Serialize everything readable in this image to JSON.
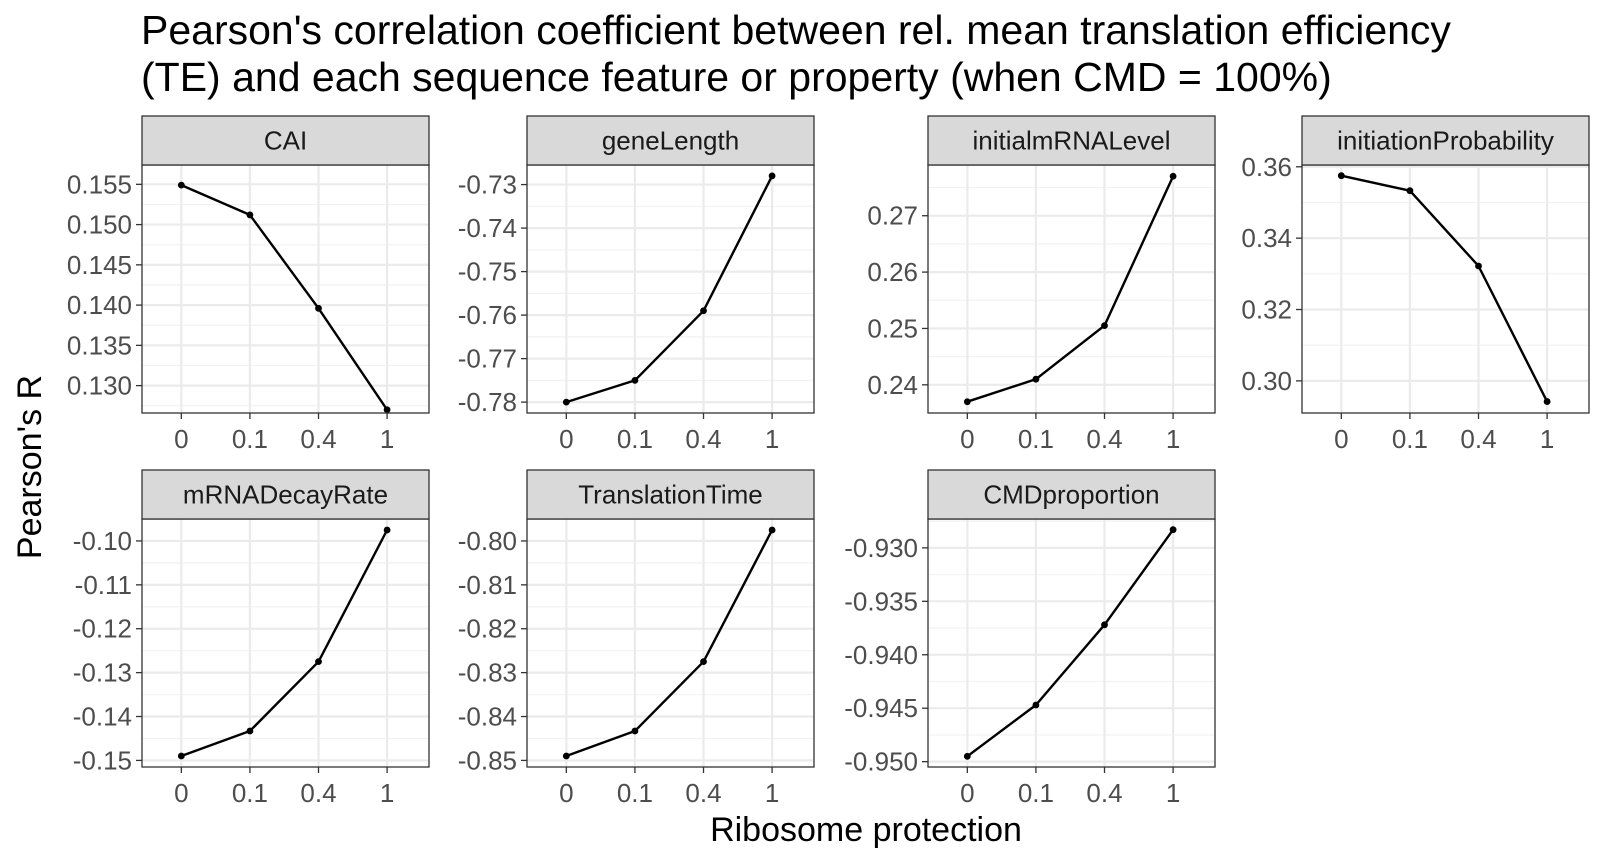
{
  "chart_data": {
    "type": "line",
    "title_lines": [
      "Pearson's correlation coefficient between rel. mean translation efficiency",
      "(TE) and each sequence feature or property (when CMD = 100%)"
    ],
    "xlabel": "Ribosome protection",
    "ylabel": "Pearson's R",
    "x": [
      "0",
      "0.1",
      "0.4",
      "1"
    ],
    "grid": true,
    "facets": [
      {
        "name": "CAI",
        "values": [
          0.1549,
          0.1512,
          0.1396,
          0.127
        ],
        "ylim": [
          0.1266,
          0.1574
        ],
        "y_ticks": [
          0.155,
          0.15,
          0.145,
          0.14,
          0.135,
          0.13
        ],
        "y_tick_labels": [
          "0.155",
          "0.150",
          "0.145",
          "0.140",
          "0.135",
          "0.130"
        ]
      },
      {
        "name": "geneLength",
        "values": [
          -0.78,
          -0.775,
          -0.759,
          -0.728
        ],
        "ylim": [
          -0.7825,
          -0.7255
        ],
        "y_ticks": [
          -0.73,
          -0.74,
          -0.75,
          -0.76,
          -0.77,
          -0.78
        ],
        "y_tick_labels": [
          "-0.73",
          "-0.74",
          "-0.75",
          "-0.76",
          "-0.77",
          "-0.78"
        ]
      },
      {
        "name": "initialmRNALevel",
        "values": [
          0.237,
          0.241,
          0.2505,
          0.277
        ],
        "ylim": [
          0.235,
          0.279
        ],
        "y_ticks": [
          0.27,
          0.26,
          0.25,
          0.24
        ],
        "y_tick_labels": [
          "0.27",
          "0.26",
          "0.25",
          "0.24"
        ]
      },
      {
        "name": "initiationProbability",
        "values": [
          0.3575,
          0.3533,
          0.3322,
          0.2942
        ],
        "ylim": [
          0.291,
          0.3605
        ],
        "y_ticks": [
          0.36,
          0.34,
          0.32,
          0.3
        ],
        "y_tick_labels": [
          "0.36",
          "0.34",
          "0.32",
          "0.30"
        ]
      },
      {
        "name": "mRNADecayRate",
        "values": [
          -0.149,
          -0.1433,
          -0.1275,
          -0.0975
        ],
        "ylim": [
          -0.1515,
          -0.095
        ],
        "y_ticks": [
          -0.1,
          -0.11,
          -0.12,
          -0.13,
          -0.14,
          -0.15
        ],
        "y_tick_labels": [
          "-0.10",
          "-0.11",
          "-0.12",
          "-0.13",
          "-0.14",
          "-0.15"
        ]
      },
      {
        "name": "TranslationTime",
        "values": [
          -0.849,
          -0.8433,
          -0.8275,
          -0.7975
        ],
        "ylim": [
          -0.8515,
          -0.795
        ],
        "y_ticks": [
          -0.8,
          -0.81,
          -0.82,
          -0.83,
          -0.84,
          -0.85
        ],
        "y_tick_labels": [
          "-0.80",
          "-0.81",
          "-0.82",
          "-0.83",
          "-0.84",
          "-0.85"
        ]
      },
      {
        "name": "CMDproportion",
        "values": [
          -0.9495,
          -0.9447,
          -0.9372,
          -0.9283
        ],
        "ylim": [
          -0.9505,
          -0.9273
        ],
        "y_ticks": [
          -0.93,
          -0.935,
          -0.94,
          -0.945,
          -0.95
        ],
        "y_tick_labels": [
          "-0.930",
          "-0.935",
          "-0.940",
          "-0.945",
          "-0.950"
        ]
      }
    ]
  }
}
